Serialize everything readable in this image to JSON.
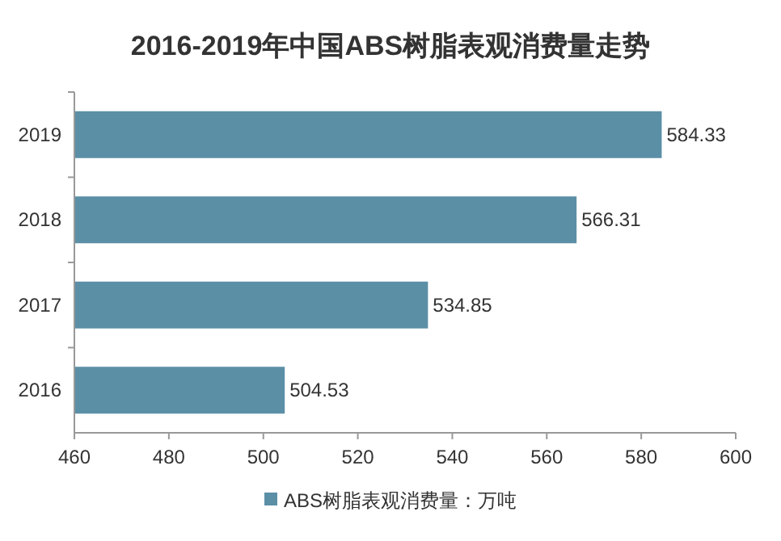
{
  "chart_data": {
    "type": "bar",
    "orientation": "horizontal",
    "title": "2016-2019年中国ABS树脂表观消费量走势",
    "categories": [
      "2019",
      "2018",
      "2017",
      "2016"
    ],
    "series": [
      {
        "name": "ABS树脂表观消费量：万吨",
        "color": "#5b8fa6",
        "values": [
          584.33,
          566.31,
          534.85,
          504.53
        ]
      }
    ],
    "data_labels": true,
    "xlim": [
      460,
      600
    ],
    "xticks": [
      460,
      480,
      500,
      520,
      540,
      560,
      580,
      600
    ],
    "grid": false,
    "legend": "bottom"
  }
}
